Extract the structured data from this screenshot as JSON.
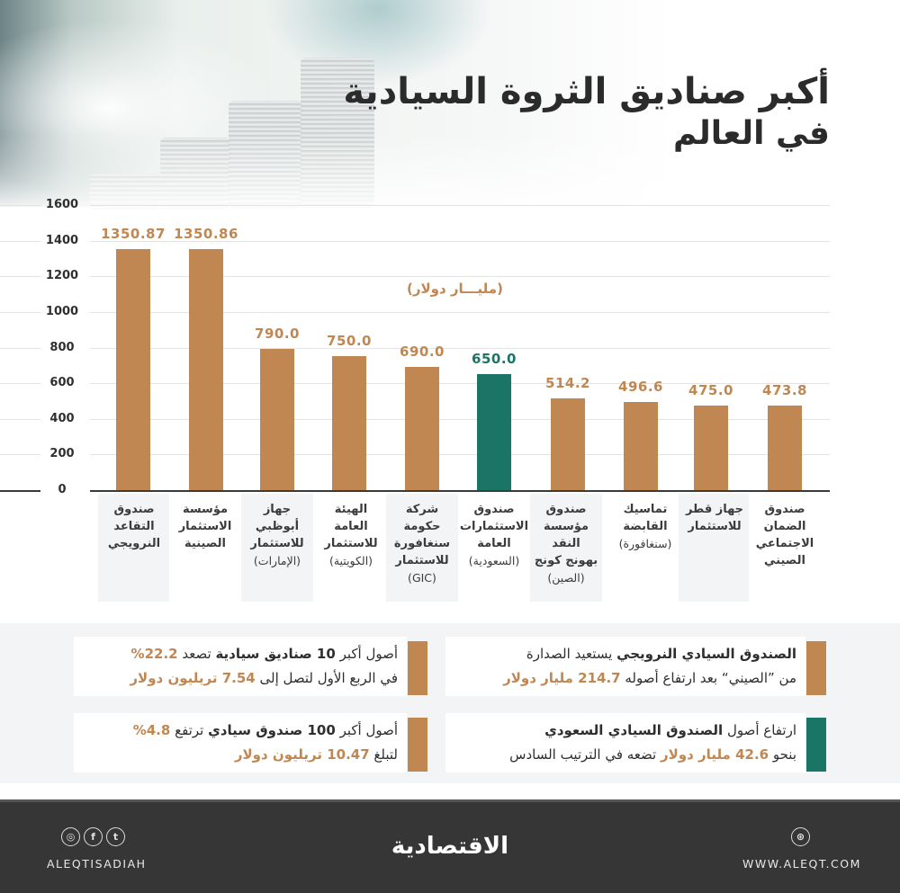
{
  "header": {
    "title_line1": "أكبر صناديق الثروة السيادية",
    "title_line2": "في العالم"
  },
  "chart_data": {
    "type": "bar",
    "title": "أكبر صناديق الثروة السيادية في العالم",
    "ylabel": "(مليـــار دولار)",
    "xlabel": "",
    "ylim": [
      0,
      1600
    ],
    "yticks": [
      0,
      200,
      400,
      600,
      800,
      1000,
      1200,
      1400,
      1600
    ],
    "grid": true,
    "legend": "none",
    "categories": [
      "صندوق التقاعد النرويجي",
      "مؤسسة الاستثمار الصينية",
      "جهاز أبوظبي للاستثمار (الإمارات)",
      "الهيئة العامة للاستثمار (الكويتية)",
      "شركة حكومة سنغافورة للاستثمار (GIC)",
      "صندوق الاستثمارات العامة (السعودية)",
      "صندوق مؤسسة النقد بهونج كونج (الصين)",
      "تماسيك القابضة (سنغافورة)",
      "جهاز قطر للاستثمار",
      "صندوق الضمان الاجتماعي الصيني"
    ],
    "values": [
      1350.87,
      1350.86,
      790.0,
      750.0,
      690.0,
      650.0,
      514.2,
      496.6,
      475.0,
      473.8
    ],
    "value_labels": [
      "1350.87",
      "1350.86",
      "790.0",
      "750.0",
      "690.0",
      "650.0",
      "514.2",
      "496.6",
      "475.0",
      "473.8"
    ],
    "highlight_index": 5,
    "colors": {
      "default": "#c08752",
      "highlight": "#1b7566"
    }
  },
  "axis": {
    "ticks": [
      "1600",
      "1400",
      "1200",
      "1000",
      "800",
      "600",
      "400",
      "200",
      "0"
    ]
  },
  "categories": [
    {
      "lines": [
        "صندوق",
        "التقاعد",
        "النرويجي"
      ],
      "sub": ""
    },
    {
      "lines": [
        "مؤسسة",
        "الاستثمار",
        "الصينية"
      ],
      "sub": ""
    },
    {
      "lines": [
        "جهاز",
        "أبوظبي",
        "للاستثمار"
      ],
      "sub": "(الإمارات)"
    },
    {
      "lines": [
        "الهيئة",
        "العامة",
        "للاستثمار"
      ],
      "sub": "(الكويتية)"
    },
    {
      "lines": [
        "شركة",
        "حكومة",
        "سنغافورة",
        "للاستثمار"
      ],
      "sub": "(GIC)"
    },
    {
      "lines": [
        "صندوق",
        "الاستثمارات",
        "العامة"
      ],
      "sub": "(السعودية)"
    },
    {
      "lines": [
        "صندوق",
        "مؤسسة النقد",
        "بهونج كونج"
      ],
      "sub": "(الصين)"
    },
    {
      "lines": [
        "تماسيك",
        "القابضة"
      ],
      "sub": "(سنغافورة)"
    },
    {
      "lines": [
        "جهاز قطر",
        "للاستثمار"
      ],
      "sub": ""
    },
    {
      "lines": [
        "صندوق",
        "الضمان",
        "الاجتماعي",
        "الصيني"
      ],
      "sub": ""
    }
  ],
  "notes": {
    "norway": {
      "l1_bold": "الصندوق السيادي النرويجي",
      "l1_rest": " يستعيد الصدارة",
      "l2_pre": "من ”الصيني“ بعد ارتفاع أصوله ",
      "l2_hl": "214.7 مليار دولار"
    },
    "saudi": {
      "l1_pre": "ارتفاع أصول ",
      "l1_bold": "الصندوق السيادي السعودي",
      "l2_pre": "بنحو ",
      "l2_hl": "42.6 مليار دولار",
      "l2_post": " تضعه في الترتيب السادس"
    },
    "top10": {
      "l1_pre": "أصول أكبر ",
      "l1_bold": "10 صناديق سيادية",
      "l1_mid": " تصعد ",
      "l1_hl": "22.2%",
      "l2_pre": "في الربع الأول لتصل إلى ",
      "l2_hl": "7.54 تريليون دولار"
    },
    "top100": {
      "l1_pre": "أصول أكبر ",
      "l1_bold": "100 صندوق سيادي",
      "l1_mid": " ترتفع ",
      "l1_hl": "4.8%",
      "l2_pre": "لتبلغ ",
      "l2_hl": "10.47 تريليون دولار"
    }
  },
  "footer": {
    "handle": "ALEQTISADIAH",
    "website": "WWW.ALEQT.COM",
    "logo": "الاقتصادية",
    "icons": {
      "instagram": "◎",
      "facebook": "f",
      "twitter": "t",
      "web": "⊛"
    }
  }
}
